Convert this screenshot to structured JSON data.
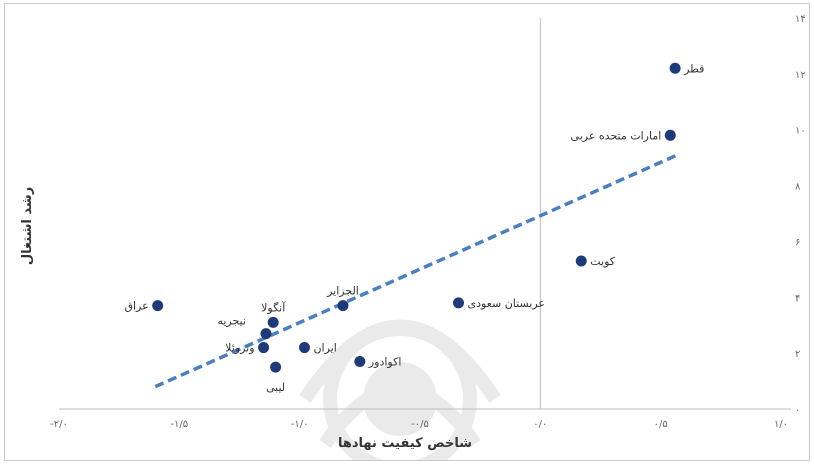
{
  "chart_data": {
    "type": "scatter",
    "title": "",
    "xlabel": "شاخص کیفیت نهادها",
    "ylabel": "رشد اشتغال",
    "xlim": [
      -2.0,
      1.0
    ],
    "ylim": [
      0,
      14
    ],
    "x_ticks": [
      {
        "value": -2.0,
        "label": "-۲/۰"
      },
      {
        "value": -1.5,
        "label": "-۱/۵"
      },
      {
        "value": -1.0,
        "label": "-۱/۰"
      },
      {
        "value": -0.5,
        "label": "-۰/۵"
      },
      {
        "value": 0.0,
        "label": "۰/۰"
      },
      {
        "value": 0.5,
        "label": "۰/۵"
      },
      {
        "value": 1.0,
        "label": "۱/۰"
      }
    ],
    "y_ticks": [
      {
        "value": 0,
        "label": "۰"
      },
      {
        "value": 2,
        "label": "۲"
      },
      {
        "value": 4,
        "label": "۴"
      },
      {
        "value": 6,
        "label": "۶"
      },
      {
        "value": 8,
        "label": "۸"
      },
      {
        "value": 10,
        "label": "۱۰"
      },
      {
        "value": 12,
        "label": "۱۲"
      },
      {
        "value": 14,
        "label": "۱۴"
      }
    ],
    "grid": false,
    "zero_line_x": 0,
    "point_color": "#1f3a78",
    "trend_color": "#4a7fc1",
    "trendline": {
      "style": "dashed",
      "x": [
        -1.6,
        0.57
      ],
      "y": [
        0.8,
        9.1
      ]
    },
    "points": [
      {
        "label": "قطر",
        "x": 0.56,
        "y": 12.2,
        "label_side": "right"
      },
      {
        "label": "امارات متحده عربی",
        "x": 0.54,
        "y": 9.8,
        "label_side": "left"
      },
      {
        "label": "کویت",
        "x": 0.17,
        "y": 5.3,
        "label_side": "right"
      },
      {
        "label": "عربستان سعودی",
        "x": -0.34,
        "y": 3.8,
        "label_side": "right"
      },
      {
        "label": "الجزایر",
        "x": -0.82,
        "y": 3.7,
        "label_side": "above"
      },
      {
        "label": "آنگولا",
        "x": -1.11,
        "y": 3.1,
        "label_side": "above"
      },
      {
        "label": "عراق",
        "x": -1.59,
        "y": 3.7,
        "label_side": "left"
      },
      {
        "label": "نیجریه",
        "x": -1.14,
        "y": 2.7,
        "label_side": "aboveleft"
      },
      {
        "label": "ونزوئلا",
        "x": -1.15,
        "y": 2.2,
        "label_side": "left"
      },
      {
        "label": "ایران",
        "x": -0.98,
        "y": 2.2,
        "label_side": "right"
      },
      {
        "label": "اکوادور",
        "x": -0.75,
        "y": 1.7,
        "label_side": "right"
      },
      {
        "label": "لیبی",
        "x": -1.1,
        "y": 1.5,
        "label_side": "below"
      }
    ]
  }
}
